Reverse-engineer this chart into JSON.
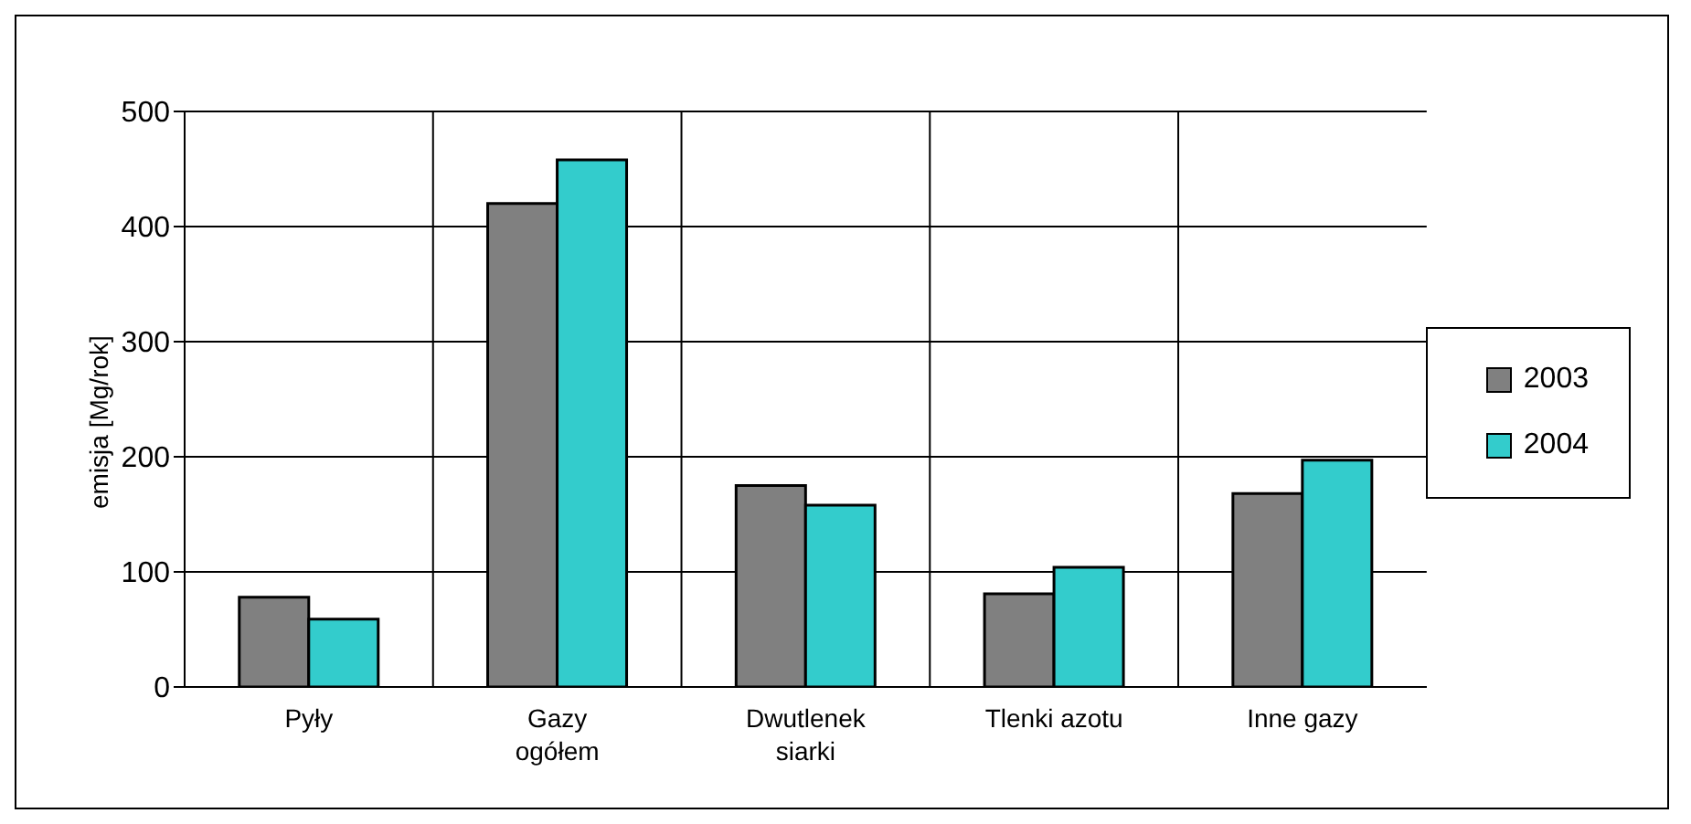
{
  "chart_data": {
    "type": "bar",
    "categories": [
      "Pyły",
      "Gazy ogółem",
      "Dwutlenek siarki",
      "Tlenki azotu",
      "Inne gazy"
    ],
    "series": [
      {
        "name": "2003",
        "color": "#808080",
        "values": [
          78,
          420,
          175,
          81,
          168
        ]
      },
      {
        "name": "2004",
        "color": "#33cccc",
        "values": [
          59,
          458,
          158,
          104,
          197
        ]
      }
    ],
    "ylabel": "emisja [Mg/rok]",
    "ylim": [
      0,
      500
    ],
    "yticks": [
      0,
      100,
      200,
      300,
      400,
      500
    ],
    "grid": true,
    "legend": "right"
  }
}
